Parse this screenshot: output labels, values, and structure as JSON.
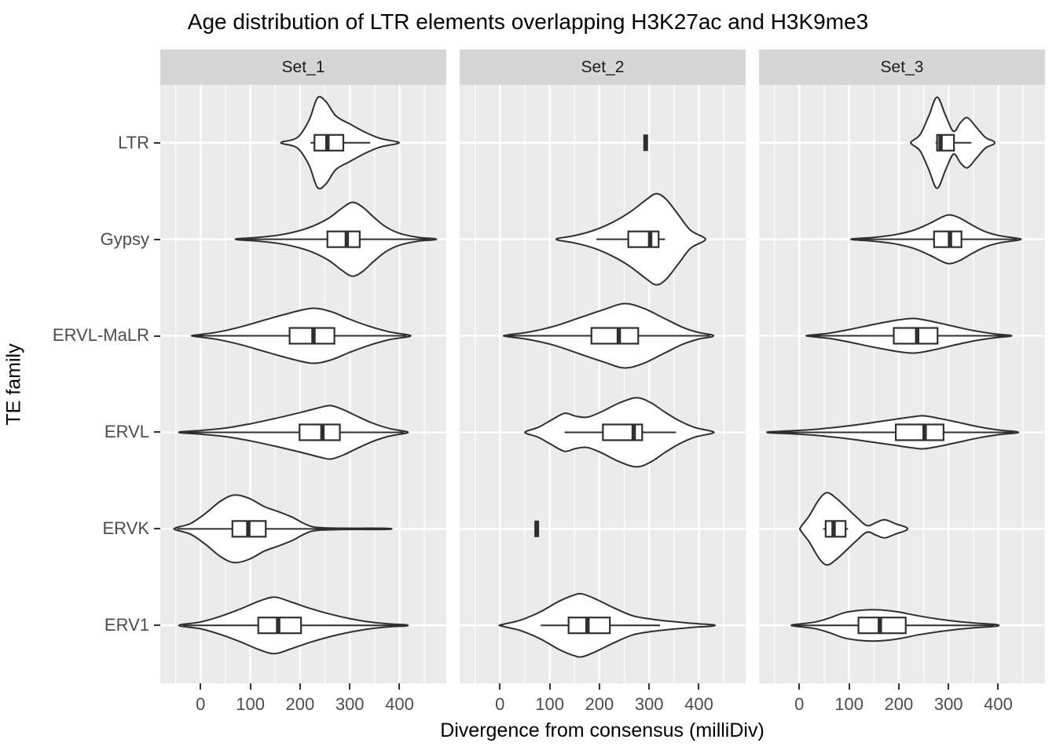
{
  "colors": {
    "panel_bg": "#EBEBEB",
    "strip_bg": "#D6D6D6",
    "grid": "#FFFFFF",
    "outline": "#2F2F2F",
    "axis_text": "#4D4D4D",
    "tick_mark": "#333333",
    "title_text": "#000000"
  },
  "chart_data": {
    "type": "violin",
    "title": "Age distribution of LTR elements overlapping H3K27ac and H3K9me3",
    "xlabel": "Divergence from consensus (milliDiv)",
    "ylabel": "TE family",
    "facets": [
      "Set_1",
      "Set_2",
      "Set_3"
    ],
    "categories": [
      "LTR",
      "Gypsy",
      "ERVL-MaLR",
      "ERVL",
      "ERVK",
      "ERV1"
    ],
    "x_ticks": [
      0,
      100,
      200,
      300,
      400
    ],
    "x_minor": [
      -50,
      50,
      150,
      250,
      350,
      450
    ],
    "xlim": [
      -81,
      494
    ],
    "grid": "on",
    "cells": [
      {
        "facet": "Set_1",
        "family": "LTR",
        "kind": "violin",
        "hw": 57,
        "range": [
          165,
          395
        ],
        "profile": [
          [
            165,
            0.02
          ],
          [
            195,
            0.12
          ],
          [
            218,
            0.5
          ],
          [
            235,
            1.0
          ],
          [
            252,
            0.92
          ],
          [
            272,
            0.6
          ],
          [
            300,
            0.42
          ],
          [
            330,
            0.24
          ],
          [
            360,
            0.1
          ],
          [
            395,
            0.02
          ]
        ],
        "box": {
          "q1": 229,
          "median": 255,
          "q3": 287
        },
        "whiskers": [
          221,
          341
        ]
      },
      {
        "facet": "Set_1",
        "family": "Gypsy",
        "kind": "violin",
        "hw": 47,
        "range": [
          75,
          470
        ],
        "profile": [
          [
            75,
            0.015
          ],
          [
            115,
            0.05
          ],
          [
            165,
            0.13
          ],
          [
            215,
            0.3
          ],
          [
            255,
            0.55
          ],
          [
            285,
            0.85
          ],
          [
            305,
            1.0
          ],
          [
            325,
            0.88
          ],
          [
            348,
            0.6
          ],
          [
            372,
            0.34
          ],
          [
            400,
            0.16
          ],
          [
            438,
            0.05
          ],
          [
            470,
            0.015
          ]
        ],
        "box": {
          "q1": 255,
          "median": 294,
          "q3": 320
        },
        "whiskers": [
          80,
          462
        ]
      },
      {
        "facet": "Set_1",
        "family": "ERVL-MaLR",
        "kind": "violin",
        "hw": 35,
        "range": [
          -13,
          418
        ],
        "profile": [
          [
            -13,
            0.02
          ],
          [
            30,
            0.12
          ],
          [
            80,
            0.32
          ],
          [
            130,
            0.58
          ],
          [
            180,
            0.83
          ],
          [
            225,
            1.0
          ],
          [
            262,
            0.88
          ],
          [
            300,
            0.6
          ],
          [
            340,
            0.34
          ],
          [
            380,
            0.14
          ],
          [
            418,
            0.03
          ]
        ],
        "box": {
          "q1": 179,
          "median": 227,
          "q3": 269
        },
        "whiskers": [
          -10,
          414
        ]
      },
      {
        "facet": "Set_1",
        "family": "ERVL",
        "kind": "violin",
        "hw": 34,
        "range": [
          -39,
          413
        ],
        "profile": [
          [
            -39,
            0.02
          ],
          [
            0,
            0.07
          ],
          [
            50,
            0.16
          ],
          [
            100,
            0.32
          ],
          [
            150,
            0.52
          ],
          [
            200,
            0.74
          ],
          [
            240,
            0.93
          ],
          [
            262,
            1.0
          ],
          [
            288,
            0.84
          ],
          [
            315,
            0.6
          ],
          [
            345,
            0.35
          ],
          [
            378,
            0.15
          ],
          [
            413,
            0.03
          ]
        ],
        "box": {
          "q1": 199,
          "median": 245,
          "q3": 280
        },
        "whiskers": [
          -36,
          409
        ]
      },
      {
        "facet": "Set_1",
        "family": "ERVK",
        "kind": "violin",
        "hw": 43,
        "range": [
          -50,
          373
        ],
        "profile": [
          [
            -50,
            0.03
          ],
          [
            -20,
            0.16
          ],
          [
            10,
            0.46
          ],
          [
            40,
            0.82
          ],
          [
            68,
            1.0
          ],
          [
            98,
            0.9
          ],
          [
            128,
            0.66
          ],
          [
            158,
            0.5
          ],
          [
            185,
            0.34
          ],
          [
            208,
            0.16
          ],
          [
            230,
            0.05
          ],
          [
            280,
            0.02
          ],
          [
            373,
            0.015
          ]
        ],
        "box": {
          "q1": 64,
          "median": 96,
          "q3": 131
        },
        "whiskers": [
          -47,
          369
        ]
      },
      {
        "facet": "Set_1",
        "family": "ERV1",
        "kind": "violin",
        "hw": 36,
        "range": [
          -39,
          413
        ],
        "profile": [
          [
            -39,
            0.03
          ],
          [
            0,
            0.12
          ],
          [
            40,
            0.32
          ],
          [
            80,
            0.58
          ],
          [
            118,
            0.86
          ],
          [
            149,
            1.0
          ],
          [
            180,
            0.84
          ],
          [
            220,
            0.6
          ],
          [
            260,
            0.4
          ],
          [
            300,
            0.24
          ],
          [
            340,
            0.12
          ],
          [
            380,
            0.05
          ],
          [
            413,
            0.02
          ]
        ],
        "box": {
          "q1": 116,
          "median": 156,
          "q3": 202
        },
        "whiskers": [
          -36,
          409
        ]
      },
      {
        "facet": "Set_2",
        "family": "LTR",
        "kind": "tick",
        "value": 293,
        "range": [
          288,
          298
        ]
      },
      {
        "facet": "Set_2",
        "family": "Gypsy",
        "kind": "violin",
        "hw": 58,
        "range": [
          117,
          410
        ],
        "profile": [
          [
            117,
            0.02
          ],
          [
            150,
            0.08
          ],
          [
            190,
            0.2
          ],
          [
            228,
            0.38
          ],
          [
            262,
            0.6
          ],
          [
            292,
            0.85
          ],
          [
            314,
            1.0
          ],
          [
            334,
            0.88
          ],
          [
            358,
            0.55
          ],
          [
            383,
            0.2
          ],
          [
            410,
            0.04
          ]
        ],
        "box": {
          "q1": 258,
          "median": 302,
          "q3": 319
        },
        "whiskers": [
          194,
          332
        ]
      },
      {
        "facet": "Set_2",
        "family": "ERVL-MaLR",
        "kind": "violin",
        "hw": 41,
        "range": [
          13,
          426
        ],
        "profile": [
          [
            13,
            0.02
          ],
          [
            60,
            0.12
          ],
          [
            110,
            0.3
          ],
          [
            160,
            0.56
          ],
          [
            210,
            0.82
          ],
          [
            250,
            1.0
          ],
          [
            288,
            0.86
          ],
          [
            328,
            0.56
          ],
          [
            368,
            0.26
          ],
          [
            400,
            0.1
          ],
          [
            426,
            0.03
          ]
        ],
        "box": {
          "q1": 184,
          "median": 239,
          "q3": 278
        },
        "whiskers": [
          16,
          422
        ]
      },
      {
        "facet": "Set_2",
        "family": "ERVL",
        "kind": "violin",
        "hw": 44,
        "range": [
          53,
          426
        ],
        "profile": [
          [
            53,
            0.03
          ],
          [
            78,
            0.15
          ],
          [
            104,
            0.36
          ],
          [
            130,
            0.55
          ],
          [
            152,
            0.47
          ],
          [
            176,
            0.44
          ],
          [
            205,
            0.6
          ],
          [
            240,
            0.85
          ],
          [
            275,
            1.0
          ],
          [
            303,
            0.86
          ],
          [
            330,
            0.6
          ],
          [
            360,
            0.34
          ],
          [
            392,
            0.14
          ],
          [
            426,
            0.03
          ]
        ],
        "box": {
          "q1": 207,
          "median": 269,
          "q3": 286
        },
        "whiskers": [
          130,
          354
        ]
      },
      {
        "facet": "Set_2",
        "family": "ERVK",
        "kind": "tick",
        "value": 74,
        "range": [
          70,
          79
        ]
      },
      {
        "facet": "Set_2",
        "family": "ERV1",
        "kind": "violin",
        "hw": 40,
        "range": [
          3,
          428
        ],
        "profile": [
          [
            3,
            0.02
          ],
          [
            40,
            0.16
          ],
          [
            80,
            0.42
          ],
          [
            118,
            0.76
          ],
          [
            148,
            0.96
          ],
          [
            165,
            1.0
          ],
          [
            192,
            0.84
          ],
          [
            230,
            0.55
          ],
          [
            268,
            0.3
          ],
          [
            308,
            0.19
          ],
          [
            348,
            0.12
          ],
          [
            390,
            0.06
          ],
          [
            428,
            0.02
          ]
        ],
        "box": {
          "q1": 138,
          "median": 176,
          "q3": 221
        },
        "whiskers": [
          82,
          322
        ]
      },
      {
        "facet": "Set_3",
        "family": "LTR",
        "kind": "violin",
        "hw": 58,
        "range": [
          226,
          391
        ],
        "profile": [
          [
            226,
            0.03
          ],
          [
            243,
            0.18
          ],
          [
            260,
            0.58
          ],
          [
            277,
            1.0
          ],
          [
            294,
            0.6
          ],
          [
            310,
            0.25
          ],
          [
            324,
            0.44
          ],
          [
            338,
            0.55
          ],
          [
            356,
            0.34
          ],
          [
            374,
            0.12
          ],
          [
            391,
            0.03
          ]
        ],
        "box": {
          "q1": 277,
          "median": 284,
          "q3": 311
        },
        "whiskers": [
          274,
          346
        ]
      },
      {
        "facet": "Set_3",
        "family": "Gypsy",
        "kind": "violin",
        "hw": 31,
        "range": [
          109,
          441
        ],
        "profile": [
          [
            109,
            0.02
          ],
          [
            150,
            0.08
          ],
          [
            190,
            0.18
          ],
          [
            228,
            0.36
          ],
          [
            262,
            0.65
          ],
          [
            288,
            0.92
          ],
          [
            303,
            1.0
          ],
          [
            322,
            0.88
          ],
          [
            346,
            0.6
          ],
          [
            372,
            0.33
          ],
          [
            402,
            0.15
          ],
          [
            441,
            0.03
          ]
        ],
        "box": {
          "q1": 271,
          "median": 303,
          "q3": 326
        },
        "whiskers": [
          112,
          438
        ]
      },
      {
        "facet": "Set_3",
        "family": "ERVL-MaLR",
        "kind": "violin",
        "hw": 22,
        "range": [
          19,
          423
        ],
        "profile": [
          [
            19,
            0.03
          ],
          [
            60,
            0.15
          ],
          [
            100,
            0.36
          ],
          [
            150,
            0.66
          ],
          [
            200,
            0.92
          ],
          [
            231,
            1.0
          ],
          [
            266,
            0.84
          ],
          [
            310,
            0.55
          ],
          [
            350,
            0.3
          ],
          [
            390,
            0.12
          ],
          [
            423,
            0.03
          ]
        ],
        "box": {
          "q1": 190,
          "median": 237,
          "q3": 278
        },
        "whiskers": [
          22,
          419
        ]
      },
      {
        "facet": "Set_3",
        "family": "ERVL",
        "kind": "violin",
        "hw": 21,
        "range": [
          -59,
          436
        ],
        "profile": [
          [
            -59,
            0.03
          ],
          [
            -10,
            0.1
          ],
          [
            40,
            0.2
          ],
          [
            90,
            0.36
          ],
          [
            140,
            0.56
          ],
          [
            190,
            0.78
          ],
          [
            230,
            0.95
          ],
          [
            250,
            1.0
          ],
          [
            282,
            0.84
          ],
          [
            320,
            0.6
          ],
          [
            358,
            0.35
          ],
          [
            398,
            0.15
          ],
          [
            436,
            0.04
          ]
        ],
        "box": {
          "q1": 194,
          "median": 252,
          "q3": 290
        },
        "whiskers": [
          -56,
          432
        ]
      },
      {
        "facet": "Set_3",
        "family": "ERVK",
        "kind": "violin",
        "hw": 46,
        "range": [
          3,
          215
        ],
        "profile": [
          [
            3,
            0.05
          ],
          [
            20,
            0.36
          ],
          [
            40,
            0.82
          ],
          [
            56,
            1.0
          ],
          [
            74,
            0.85
          ],
          [
            94,
            0.6
          ],
          [
            114,
            0.34
          ],
          [
            136,
            0.09
          ],
          [
            155,
            0.18
          ],
          [
            172,
            0.25
          ],
          [
            194,
            0.14
          ],
          [
            215,
            0.04
          ]
        ],
        "box": {
          "q1": 53,
          "median": 69,
          "q3": 93
        },
        "whiskers": [
          48,
          98
        ]
      },
      {
        "facet": "Set_3",
        "family": "ERV1",
        "kind": "violin",
        "hw": 20,
        "range": [
          -11,
          396
        ],
        "profile": [
          [
            -11,
            0.04
          ],
          [
            30,
            0.2
          ],
          [
            60,
            0.46
          ],
          [
            90,
            0.8
          ],
          [
            120,
            0.95
          ],
          [
            148,
            1.0
          ],
          [
            176,
            0.95
          ],
          [
            202,
            0.84
          ],
          [
            240,
            0.6
          ],
          [
            280,
            0.4
          ],
          [
            318,
            0.25
          ],
          [
            352,
            0.15
          ],
          [
            396,
            0.05
          ]
        ],
        "box": {
          "q1": 119,
          "median": 162,
          "q3": 214
        },
        "whiskers": [
          -8,
          392
        ]
      }
    ]
  }
}
